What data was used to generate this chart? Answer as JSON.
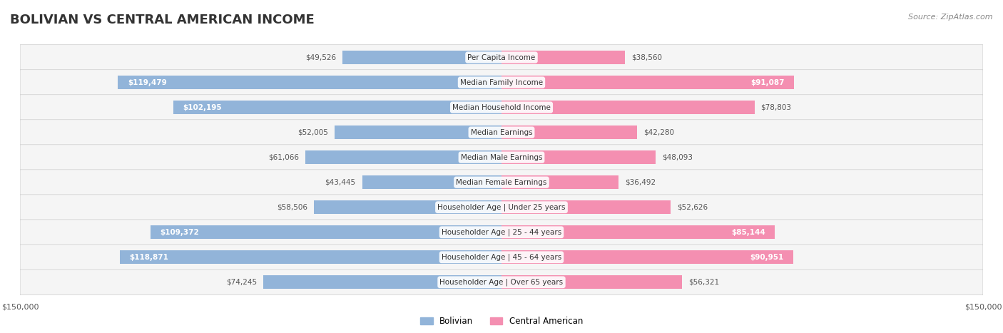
{
  "title": "BOLIVIAN VS CENTRAL AMERICAN INCOME",
  "source": "Source: ZipAtlas.com",
  "categories": [
    "Per Capita Income",
    "Median Family Income",
    "Median Household Income",
    "Median Earnings",
    "Median Male Earnings",
    "Median Female Earnings",
    "Householder Age | Under 25 years",
    "Householder Age | 25 - 44 years",
    "Householder Age | 45 - 64 years",
    "Householder Age | Over 65 years"
  ],
  "bolivian": [
    49526,
    119479,
    102195,
    52005,
    61066,
    43445,
    58506,
    109372,
    118871,
    74245
  ],
  "central_american": [
    38560,
    91087,
    78803,
    42280,
    48093,
    36492,
    52626,
    85144,
    90951,
    56321
  ],
  "max_val": 150000,
  "bolivian_color": "#92b4d9",
  "bolivian_color_dark": "#6699cc",
  "central_american_color": "#f48fb1",
  "central_american_color_dark": "#e75480",
  "label_color_dark_blue": "#5b8abf",
  "label_color_dark_pink": "#d9547a",
  "bg_row_color": "#f5f5f5",
  "bar_height": 0.55,
  "row_bg_alpha": 0.5
}
